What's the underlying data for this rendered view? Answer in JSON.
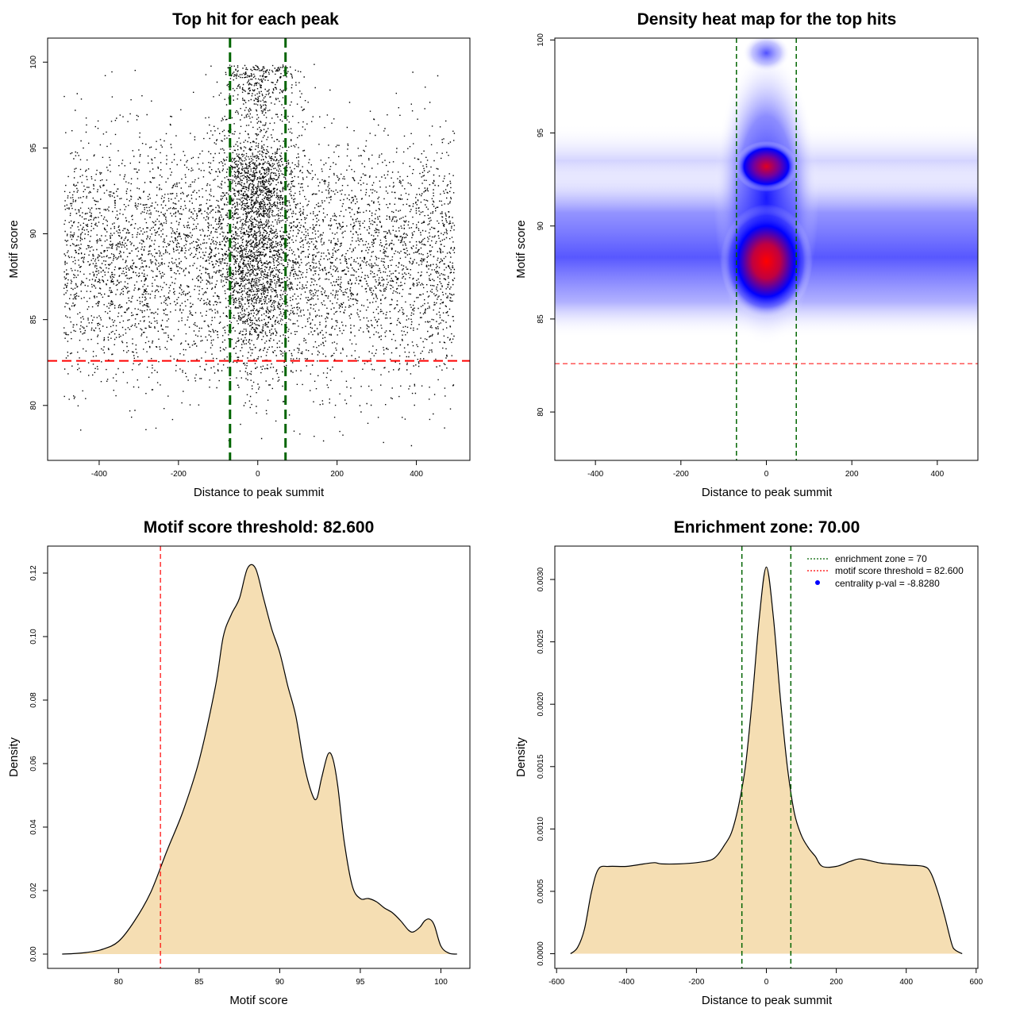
{
  "chart_data": [
    {
      "id": "scatter",
      "type": "scatter",
      "title": "Top hit for each peak",
      "xlabel": "Distance to peak summit",
      "ylabel": "Motif score",
      "xlim": [
        -530,
        535
      ],
      "ylim": [
        76.8,
        101.4
      ],
      "xticks": [
        -400,
        -200,
        0,
        200,
        400
      ],
      "xtick_labels": [
        "-400",
        "-200",
        "0",
        "200",
        "400"
      ],
      "yticks": [
        80,
        85,
        90,
        95,
        100
      ],
      "ytick_labels": [
        "80",
        "85",
        "90",
        "95",
        "100"
      ],
      "vlines": [
        -70,
        70
      ],
      "vline_color": "#006400",
      "hline": 82.6,
      "hline_color": "#FF0000",
      "point_color": "#000000",
      "description_params": {
        "x_range": [
          -490,
          495
        ],
        "score_center": 88.5,
        "score_sd": 3.5,
        "central_cluster_sd": 45,
        "n_points_approx": 10000
      }
    },
    {
      "id": "heatmap",
      "type": "heatmap",
      "title": "Density heat map for the top hits",
      "xlabel": "Distance to peak summit",
      "ylabel": "Motif score",
      "xlim": [
        -495,
        495
      ],
      "ylim": [
        77.4,
        100.1
      ],
      "xticks": [
        -400,
        -200,
        0,
        200,
        400
      ],
      "xtick_labels": [
        "-400",
        "-200",
        "0",
        "200",
        "400"
      ],
      "yticks": [
        80,
        85,
        90,
        95,
        100
      ],
      "ytick_labels": [
        "80",
        "85",
        "90",
        "95",
        "100"
      ],
      "vlines": [
        -70,
        70
      ],
      "vline_color": "#006400",
      "hline": 82.6,
      "hline_color": "#FF0000",
      "color_ramp": [
        "#FFFFFF",
        "#0000FF",
        "#FF0000"
      ],
      "hotspots": [
        {
          "x": 0,
          "y": 88.1,
          "level": "max"
        },
        {
          "x": 0,
          "y": 93.2,
          "level": "high"
        },
        {
          "x": 0,
          "y": 99.3,
          "level": "medium"
        }
      ]
    },
    {
      "id": "score_density",
      "type": "area",
      "title": "Motif score threshold: 82.600",
      "xlabel": "Motif score",
      "ylabel": "Density",
      "xlim": [
        75.6,
        101.8
      ],
      "ylim": [
        -0.0045,
        0.1285
      ],
      "xticks": [
        80,
        85,
        90,
        95,
        100
      ],
      "xtick_labels": [
        "80",
        "85",
        "90",
        "95",
        "100"
      ],
      "yticks": [
        0,
        0.02,
        0.04,
        0.06,
        0.08,
        0.1,
        0.12
      ],
      "ytick_labels": [
        "0.00",
        "0.02",
        "0.04",
        "0.06",
        "0.08",
        "0.10",
        "0.12"
      ],
      "fill_color": "#F5DEB3",
      "vline": 82.6,
      "vline_color": "#FF0000",
      "x": [
        76.5,
        77,
        78,
        79,
        80,
        81,
        82,
        83,
        84,
        85,
        86,
        86.5,
        87,
        87.5,
        88,
        88.5,
        89,
        89.5,
        90,
        90.5,
        91,
        91.5,
        92,
        92.3,
        92.6,
        93,
        93.3,
        93.6,
        94,
        94.5,
        95,
        95.5,
        96,
        96.5,
        97,
        97.5,
        98,
        98.3,
        98.7,
        99,
        99.3,
        99.6,
        100,
        100.5,
        101
      ],
      "values": [
        0,
        0.0001,
        0.0005,
        0.0015,
        0.004,
        0.0105,
        0.0195,
        0.0325,
        0.045,
        0.061,
        0.084,
        0.1,
        0.107,
        0.112,
        0.1215,
        0.1215,
        0.112,
        0.1025,
        0.095,
        0.0845,
        0.075,
        0.06,
        0.0505,
        0.049,
        0.0555,
        0.063,
        0.0615,
        0.053,
        0.0355,
        0.0215,
        0.0175,
        0.0175,
        0.0165,
        0.0145,
        0.013,
        0.0105,
        0.0075,
        0.007,
        0.0085,
        0.0105,
        0.011,
        0.009,
        0.0025,
        0.0003,
        0
      ]
    },
    {
      "id": "distance_density",
      "type": "area",
      "title": "Enrichment zone: 70.00",
      "xlabel": "Distance to peak summit",
      "ylabel": "Density",
      "xlim": [
        -605,
        605
      ],
      "ylim": [
        -0.0001175,
        0.0032675
      ],
      "xticks": [
        -600,
        -400,
        -200,
        0,
        200,
        400,
        600
      ],
      "xtick_labels": [
        "-600",
        "-400",
        "-200",
        "0",
        "200",
        "400",
        "600"
      ],
      "yticks": [
        0,
        0.0005,
        0.001,
        0.0015,
        0.002,
        0.0025,
        0.003
      ],
      "ytick_labels": [
        "0.0000",
        "0.0005",
        "0.0010",
        "0.0015",
        "0.0020",
        "0.0025",
        "0.0030"
      ],
      "fill_color": "#F5DEB3",
      "vlines": [
        -70,
        70
      ],
      "vline_color": "#006400",
      "x": [
        -560,
        -540,
        -520,
        -500,
        -480,
        -450,
        -400,
        -350,
        -320,
        -300,
        -250,
        -200,
        -160,
        -140,
        -120,
        -100,
        -80,
        -60,
        -40,
        -20,
        0,
        20,
        40,
        60,
        80,
        100,
        120,
        140,
        160,
        200,
        240,
        270,
        320,
        350,
        400,
        450,
        470,
        490,
        510,
        530,
        540,
        560
      ],
      "values": [
        0,
        5e-05,
        0.0002,
        0.0005,
        0.00068,
        0.0007,
        0.0007,
        0.00072,
        0.00073,
        0.00072,
        0.00072,
        0.00073,
        0.00075,
        0.00079,
        0.00087,
        0.00097,
        0.00118,
        0.0015,
        0.00205,
        0.0027,
        0.0031,
        0.0027,
        0.00205,
        0.0015,
        0.00113,
        0.00095,
        0.00085,
        0.00078,
        0.0007,
        0.0007,
        0.00074,
        0.00076,
        0.00073,
        0.00072,
        0.00071,
        0.0007,
        0.00065,
        0.0005,
        0.0003,
        8e-05,
        3e-05,
        0
      ],
      "legend": [
        {
          "label": "enrichment zone = 70",
          "color": "#006400",
          "style": "dotted-line"
        },
        {
          "label": "motif score threshold = 82.600",
          "color": "#FF0000",
          "style": "dotted-line"
        },
        {
          "label": "centrality p-val = -8.8280",
          "color": "#0000FF",
          "style": "point"
        }
      ]
    }
  ]
}
